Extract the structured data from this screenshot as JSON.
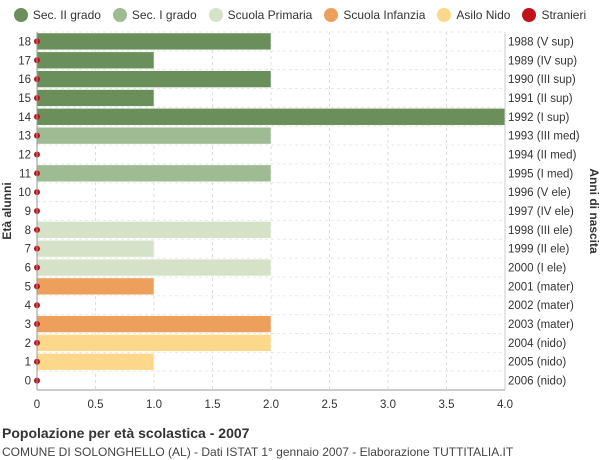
{
  "legend": [
    {
      "label": "Sec. II grado",
      "color": "#6a8f5a"
    },
    {
      "label": "Sec. I grado",
      "color": "#9fbb93"
    },
    {
      "label": "Scuola Primaria",
      "color": "#d6e2c8"
    },
    {
      "label": "Scuola Infanzia",
      "color": "#eda05c"
    },
    {
      "label": "Asilo Nido",
      "color": "#fdd88a"
    },
    {
      "label": "Stranieri",
      "color": "#c0121a"
    }
  ],
  "chart_data": {
    "type": "bar",
    "orientation": "horizontal",
    "ylabel_left": "Età alunni",
    "ylabel_right": "Anni di nascita",
    "xlim": [
      0,
      4
    ],
    "x_ticks": [
      "0",
      "0.5",
      "1.0",
      "1.5",
      "2.0",
      "2.5",
      "3.0",
      "3.5",
      "4.0"
    ],
    "grid": true,
    "legend_position": "top",
    "rows": [
      {
        "age": "18",
        "year": "1988 (V sup)",
        "value": 2,
        "group": "Sec. II grado",
        "stranieri": 0
      },
      {
        "age": "17",
        "year": "1989 (IV sup)",
        "value": 1,
        "group": "Sec. II grado",
        "stranieri": 0
      },
      {
        "age": "16",
        "year": "1990 (III sup)",
        "value": 2,
        "group": "Sec. II grado",
        "stranieri": 0
      },
      {
        "age": "15",
        "year": "1991 (II sup)",
        "value": 1,
        "group": "Sec. II grado",
        "stranieri": 0
      },
      {
        "age": "14",
        "year": "1992 (I sup)",
        "value": 4,
        "group": "Sec. II grado",
        "stranieri": 0
      },
      {
        "age": "13",
        "year": "1993 (III med)",
        "value": 2,
        "group": "Sec. I grado",
        "stranieri": 0
      },
      {
        "age": "12",
        "year": "1994 (II med)",
        "value": 0,
        "group": "Sec. I grado",
        "stranieri": 0
      },
      {
        "age": "11",
        "year": "1995 (I med)",
        "value": 2,
        "group": "Sec. I grado",
        "stranieri": 0
      },
      {
        "age": "10",
        "year": "1996 (V ele)",
        "value": 0,
        "group": "Scuola Primaria",
        "stranieri": 0
      },
      {
        "age": "9",
        "year": "1997 (IV ele)",
        "value": 0,
        "group": "Scuola Primaria",
        "stranieri": 0
      },
      {
        "age": "8",
        "year": "1998 (III ele)",
        "value": 2,
        "group": "Scuola Primaria",
        "stranieri": 0
      },
      {
        "age": "7",
        "year": "1999 (II ele)",
        "value": 1,
        "group": "Scuola Primaria",
        "stranieri": 0
      },
      {
        "age": "6",
        "year": "2000 (I ele)",
        "value": 2,
        "group": "Scuola Primaria",
        "stranieri": 0
      },
      {
        "age": "5",
        "year": "2001 (mater)",
        "value": 1,
        "group": "Scuola Infanzia",
        "stranieri": 0
      },
      {
        "age": "4",
        "year": "2002 (mater)",
        "value": 0,
        "group": "Scuola Infanzia",
        "stranieri": 0
      },
      {
        "age": "3",
        "year": "2003 (mater)",
        "value": 2,
        "group": "Scuola Infanzia",
        "stranieri": 0
      },
      {
        "age": "2",
        "year": "2004 (nido)",
        "value": 2,
        "group": "Asilo Nido",
        "stranieri": 0
      },
      {
        "age": "1",
        "year": "2005 (nido)",
        "value": 1,
        "group": "Asilo Nido",
        "stranieri": 0
      },
      {
        "age": "0",
        "year": "2006 (nido)",
        "value": 0,
        "group": "Asilo Nido",
        "stranieri": 0
      }
    ]
  },
  "caption": {
    "title": "Popolazione per età scolastica - 2007",
    "subtitle": "COMUNE DI SOLONGHELLO (AL) - Dati ISTAT 1° gennaio 2007 - Elaborazione TUTTITALIA.IT"
  }
}
